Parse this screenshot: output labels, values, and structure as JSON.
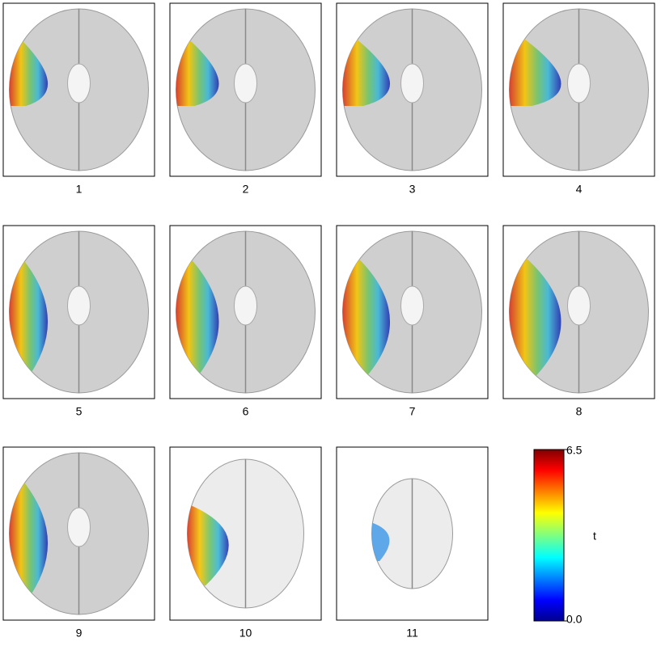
{
  "panels": [
    {
      "label": "1"
    },
    {
      "label": "2"
    },
    {
      "label": "3"
    },
    {
      "label": "4"
    },
    {
      "label": "5"
    },
    {
      "label": "6"
    },
    {
      "label": "7"
    },
    {
      "label": "8"
    },
    {
      "label": "9"
    },
    {
      "label": "10"
    },
    {
      "label": "11"
    }
  ],
  "colorbar": {
    "label": "t",
    "lim": [
      0,
      6.5
    ],
    "ticks": [
      {
        "value": 0,
        "label": "0.0"
      },
      6.5
    ]
  }
}
